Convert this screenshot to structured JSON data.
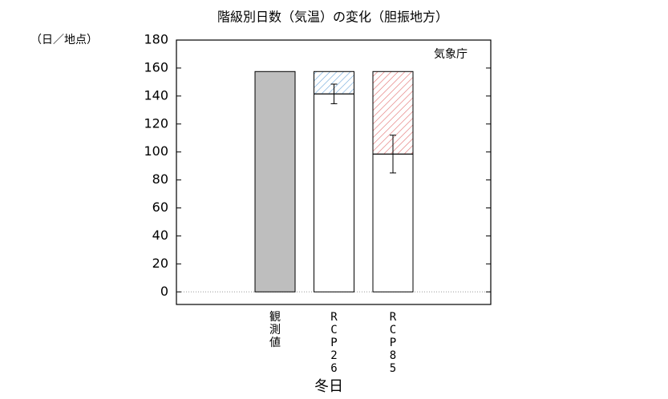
{
  "chart_data": {
    "type": "bar",
    "title": "階級別日数（気温）の変化（胆振地方）",
    "y_unit": "（日／地点）",
    "source": "気象庁",
    "x_label": "冬日",
    "categories": [
      "観測値",
      "RCP26",
      "RCP85"
    ],
    "values": [
      157.5,
      141.5,
      98.5
    ],
    "changes": [
      null,
      16,
      59
    ],
    "errors": [
      null,
      7,
      13.5
    ],
    "colors": [
      "#bebebe",
      "#ffffff",
      "#ffffff"
    ],
    "change_colors": [
      null,
      "#6fa8dc",
      "#e06666"
    ],
    "ylim": [
      -9,
      180
    ],
    "yticks": [
      0,
      20,
      40,
      60,
      80,
      100,
      120,
      140,
      160,
      180
    ]
  }
}
